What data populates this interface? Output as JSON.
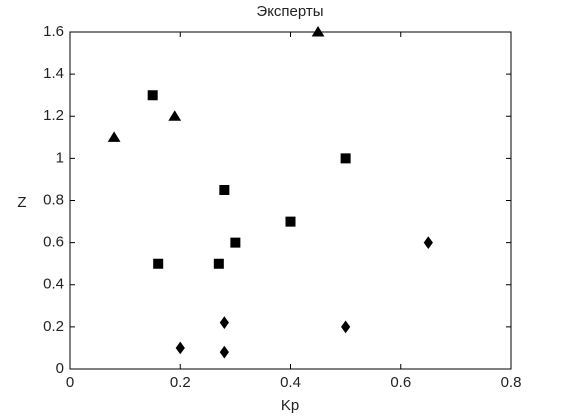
{
  "chart_data": {
    "type": "scatter",
    "title": "Эксперты",
    "x_label": "Kp",
    "y_label": "Z",
    "xlim": [
      0,
      0.8
    ],
    "xticks": [
      0,
      0.2,
      0.4,
      0.6,
      0.8
    ],
    "ylim": [
      0,
      1.6
    ],
    "yticks": [
      0,
      0.2,
      0.4,
      0.6,
      0.8,
      1,
      1.2,
      1.4,
      1.6
    ],
    "grid": false,
    "series": [
      {
        "marker": "triangle",
        "color": "#000000",
        "x": [
          0.08,
          0.19,
          0.45
        ],
        "values": [
          1.1,
          1.2,
          1.6
        ]
      },
      {
        "marker": "square",
        "color": "#000000",
        "x": [
          0.15,
          0.28,
          0.3,
          0.16,
          0.27,
          0.4,
          0.5
        ],
        "values": [
          1.3,
          0.85,
          0.6,
          0.5,
          0.5,
          0.7,
          1.0
        ]
      },
      {
        "marker": "diamond",
        "color": "#000000",
        "x": [
          0.2,
          0.28,
          0.28,
          0.5,
          0.65
        ],
        "values": [
          0.1,
          0.22,
          0.08,
          0.2,
          0.6
        ]
      }
    ]
  }
}
